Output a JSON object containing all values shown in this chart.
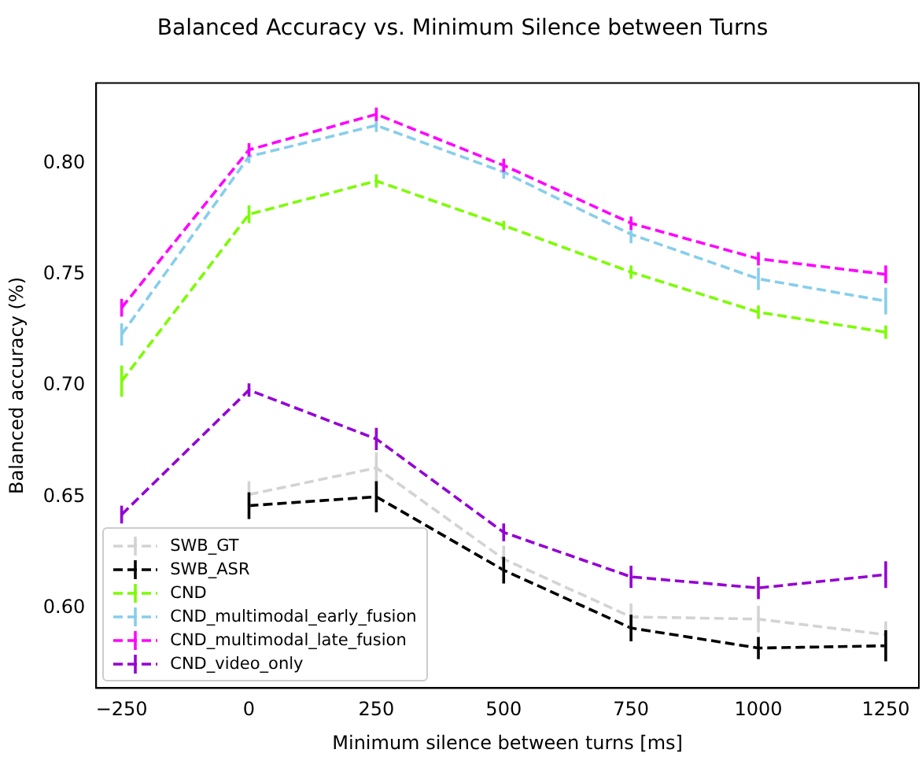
{
  "chart_data": {
    "type": "line",
    "title": "Balanced Accuracy vs. Minimum Silence between Turns",
    "xlabel": "Minimum silence between turns [ms]",
    "ylabel": "Balanced accuracy (%)",
    "x": [
      -250,
      0,
      250,
      500,
      750,
      1000,
      1250
    ],
    "series": [
      {
        "name": "SWB_GT",
        "color": "#d3d3d3",
        "values": [
          null,
          0.651,
          0.663,
          0.622,
          0.596,
          0.595,
          0.588
        ],
        "errors": [
          null,
          0.006,
          0.007,
          0.006,
          0.006,
          0.006,
          0.006
        ]
      },
      {
        "name": "SWB_ASR",
        "color": "#000000",
        "values": [
          null,
          0.646,
          0.65,
          0.617,
          0.591,
          0.582,
          0.583
        ],
        "errors": [
          null,
          0.006,
          0.007,
          0.006,
          0.006,
          0.005,
          0.007
        ]
      },
      {
        "name": "CND",
        "color": "#7cfc00",
        "values": [
          0.702,
          0.777,
          0.792,
          0.772,
          0.751,
          0.733,
          0.724
        ],
        "errors": [
          0.007,
          0.004,
          0.003,
          0.002,
          0.003,
          0.003,
          0.003
        ]
      },
      {
        "name": "CND_multimodal_early_fusion",
        "color": "#87ceeb",
        "values": [
          0.723,
          0.803,
          0.817,
          0.796,
          0.768,
          0.748,
          0.738
        ],
        "errors": [
          0.005,
          0.003,
          0.003,
          0.003,
          0.004,
          0.005,
          0.006
        ]
      },
      {
        "name": "CND_multimodal_late_fusion",
        "color": "#ff00ff",
        "values": [
          0.735,
          0.806,
          0.822,
          0.799,
          0.773,
          0.757,
          0.75
        ],
        "errors": [
          0.004,
          0.003,
          0.003,
          0.003,
          0.003,
          0.003,
          0.004
        ]
      },
      {
        "name": "CND_video_only",
        "color": "#9400d3",
        "values": [
          0.642,
          0.698,
          0.676,
          0.634,
          0.614,
          0.609,
          0.615
        ],
        "errors": [
          0.004,
          0.003,
          0.005,
          0.004,
          0.005,
          0.005,
          0.006
        ]
      }
    ],
    "xlim": [
      -300,
      1315
    ],
    "xticks": [
      -250,
      0,
      250,
      500,
      750,
      1000,
      1250
    ],
    "ylim": [
      0.564,
      0.836
    ],
    "yticks": [
      {
        "value": 0.6,
        "label": "0.60"
      },
      {
        "value": 0.65,
        "label": "0.65"
      },
      {
        "value": 0.7,
        "label": "0.70"
      },
      {
        "value": 0.75,
        "label": "0.75"
      },
      {
        "value": 0.8,
        "label": "0.80"
      }
    ],
    "grid": false,
    "legend": "bottom left",
    "marker": "none",
    "line_style": "dashed"
  }
}
